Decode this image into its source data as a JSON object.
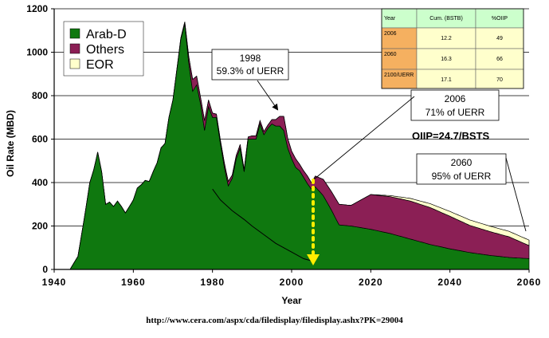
{
  "chart_data": {
    "type": "area",
    "ylabel": "Oil Rate (MBD)",
    "xlabel": "Year",
    "xlim": [
      1940,
      2060
    ],
    "ylim": [
      0,
      1200
    ],
    "x_ticks": [
      "1940",
      "1960",
      "1980",
      "2000",
      "2020",
      "2040",
      "2060"
    ],
    "y_ticks": [
      "0",
      "200",
      "400",
      "600",
      "800",
      "1000",
      "1200"
    ],
    "legend_position": "top-left",
    "stacked": true,
    "series": [
      {
        "name": "Arab-D",
        "color": "#0f780f",
        "points": [
          [
            1944,
            0
          ],
          [
            1946,
            60
          ],
          [
            1947,
            170
          ],
          [
            1948,
            280
          ],
          [
            1949,
            400
          ],
          [
            1950,
            460
          ],
          [
            1951,
            540
          ],
          [
            1952,
            450
          ],
          [
            1953,
            300
          ],
          [
            1954,
            310
          ],
          [
            1955,
            290
          ],
          [
            1956,
            315
          ],
          [
            1957,
            290
          ],
          [
            1958,
            260
          ],
          [
            1959,
            290
          ],
          [
            1960,
            320
          ],
          [
            1961,
            375
          ],
          [
            1962,
            390
          ],
          [
            1963,
            410
          ],
          [
            1964,
            405
          ],
          [
            1965,
            450
          ],
          [
            1966,
            490
          ],
          [
            1967,
            560
          ],
          [
            1968,
            580
          ],
          [
            1969,
            700
          ],
          [
            1970,
            780
          ],
          [
            1971,
            920
          ],
          [
            1972,
            1060
          ],
          [
            1973,
            1130
          ],
          [
            1974,
            950
          ],
          [
            1975,
            820
          ],
          [
            1976,
            850
          ],
          [
            1977,
            760
          ],
          [
            1978,
            640
          ],
          [
            1979,
            750
          ],
          [
            1980,
            700
          ],
          [
            1981,
            700
          ],
          [
            1982,
            580
          ],
          [
            1983,
            470
          ],
          [
            1984,
            385
          ],
          [
            1985,
            420
          ],
          [
            1986,
            510
          ],
          [
            1987,
            560
          ],
          [
            1988,
            450
          ],
          [
            1989,
            600
          ],
          [
            1990,
            600
          ],
          [
            1991,
            600
          ],
          [
            1992,
            670
          ],
          [
            1993,
            620
          ],
          [
            1994,
            650
          ],
          [
            1995,
            670
          ],
          [
            1996,
            660
          ],
          [
            1997,
            660
          ],
          [
            1998,
            640
          ],
          [
            1999,
            560
          ],
          [
            2000,
            510
          ],
          [
            2001,
            470
          ],
          [
            2002,
            455
          ],
          [
            2003,
            425
          ],
          [
            2004,
            395
          ],
          [
            2005,
            370
          ],
          [
            2006,
            380
          ],
          [
            2008,
            340
          ],
          [
            2010,
            275
          ],
          [
            2012,
            205
          ],
          [
            2015,
            200
          ],
          [
            2020,
            185
          ],
          [
            2025,
            165
          ],
          [
            2030,
            140
          ],
          [
            2035,
            115
          ],
          [
            2040,
            95
          ],
          [
            2045,
            78
          ],
          [
            2050,
            65
          ],
          [
            2055,
            55
          ],
          [
            2060,
            50
          ]
        ]
      },
      {
        "name": "Others",
        "color": "#8b1f55",
        "points": [
          [
            1944,
            0
          ],
          [
            1970,
            0
          ],
          [
            1972,
            5
          ],
          [
            1973,
            10
          ],
          [
            1974,
            30
          ],
          [
            1975,
            55
          ],
          [
            1976,
            40
          ],
          [
            1977,
            30
          ],
          [
            1978,
            45
          ],
          [
            1979,
            30
          ],
          [
            1980,
            20
          ],
          [
            1981,
            15
          ],
          [
            1982,
            15
          ],
          [
            1983,
            20
          ],
          [
            1984,
            20
          ],
          [
            1985,
            15
          ],
          [
            1986,
            15
          ],
          [
            1987,
            15
          ],
          [
            1988,
            10
          ],
          [
            1989,
            10
          ],
          [
            1990,
            15
          ],
          [
            1991,
            15
          ],
          [
            1992,
            15
          ],
          [
            1993,
            15
          ],
          [
            1994,
            15
          ],
          [
            1995,
            20
          ],
          [
            1996,
            30
          ],
          [
            1997,
            45
          ],
          [
            1998,
            65
          ],
          [
            1999,
            45
          ],
          [
            2000,
            35
          ],
          [
            2001,
            40
          ],
          [
            2002,
            30
          ],
          [
            2003,
            30
          ],
          [
            2004,
            35
          ],
          [
            2005,
            30
          ],
          [
            2006,
            50
          ],
          [
            2008,
            75
          ],
          [
            2010,
            85
          ],
          [
            2012,
            95
          ],
          [
            2015,
            95
          ],
          [
            2020,
            160
          ],
          [
            2025,
            170
          ],
          [
            2030,
            175
          ],
          [
            2035,
            170
          ],
          [
            2040,
            150
          ],
          [
            2045,
            125
          ],
          [
            2050,
            110
          ],
          [
            2055,
            95
          ],
          [
            2060,
            60
          ]
        ]
      },
      {
        "name": "EOR",
        "color": "#ffffcc",
        "points": [
          [
            1944,
            0
          ],
          [
            2020,
            0
          ],
          [
            2025,
            5
          ],
          [
            2030,
            12
          ],
          [
            2035,
            18
          ],
          [
            2040,
            22
          ],
          [
            2045,
            25
          ],
          [
            2050,
            25
          ],
          [
            2055,
            25
          ],
          [
            2060,
            25
          ]
        ]
      }
    ],
    "reference_line": [
      [
        1980,
        370
      ],
      [
        1982,
        320
      ],
      [
        1985,
        270
      ],
      [
        1988,
        230
      ],
      [
        1990,
        200
      ],
      [
        1993,
        160
      ],
      [
        1996,
        120
      ],
      [
        2000,
        80
      ],
      [
        2003,
        50
      ],
      [
        2006,
        35
      ]
    ],
    "annotations": [
      {
        "lines": [
          "1998",
          "59.3% of UERR"
        ],
        "x": 1998,
        "y": 700
      },
      {
        "lines": [
          "2006",
          "71% of UERR"
        ],
        "x": 2006,
        "y": 420
      },
      {
        "lines": [
          "2060",
          "95% of UERR"
        ],
        "x": 2060,
        "y": 165
      }
    ],
    "arrow_label_oiip": "OIIP=24.7/BSTS",
    "table": {
      "headers": [
        "Year",
        "Cum. (BSTB)",
        "%OIIP"
      ],
      "rows": [
        [
          "2006",
          "12.2",
          "49"
        ],
        [
          "2060",
          "16.3",
          "66"
        ],
        [
          "2100/UERR",
          "17.1",
          "70"
        ]
      ]
    }
  },
  "source_url": "http://www.cera.com/aspx/cda/filedisplay/filedisplay.ashx?PK=29004"
}
